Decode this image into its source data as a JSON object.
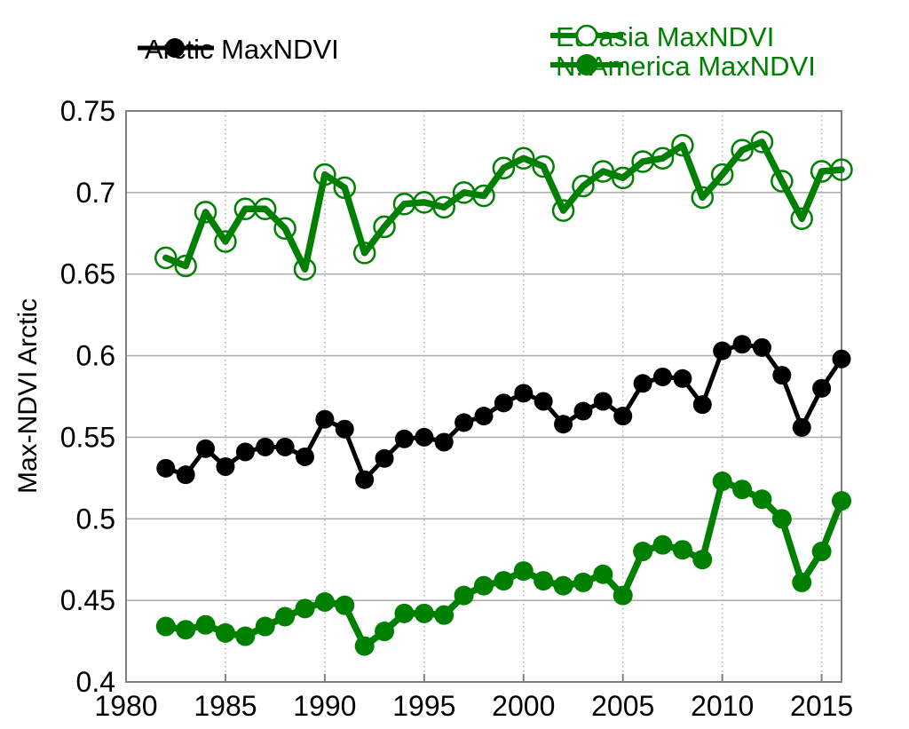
{
  "axes": {
    "y_title": "Max-NDVI Arctic"
  },
  "legend": {
    "arctic_label": "Arctic MaxNDVI",
    "eurasia_label": "Eurasia MaxNDVI",
    "namerica_label": "N. America MaxNDVI"
  },
  "colors": {
    "black": "#000000",
    "green": "#008000",
    "grid": "#b0b0b0",
    "frame": "#808080"
  },
  "chart_data": {
    "type": "line",
    "title": "",
    "xlabel": "",
    "ylabel": "Max-NDVI Arctic",
    "xlim": [
      1980,
      2016
    ],
    "ylim": [
      0.4,
      0.75
    ],
    "x_ticks": [
      1980,
      1985,
      1990,
      1995,
      2000,
      2005,
      2010,
      2015
    ],
    "y_ticks": [
      0.4,
      0.45,
      0.5,
      0.55,
      0.6,
      0.65,
      0.7,
      0.75
    ],
    "y_tick_labels": [
      "0.4",
      "0.45",
      "0.5",
      "0.55",
      "0.6",
      "0.65",
      "0.7",
      "0.75"
    ],
    "grid": "horizontal-solid-gray, vertical-dotted-gray-at-5yr",
    "legend_position": "top",
    "x": [
      1982,
      1983,
      1984,
      1985,
      1986,
      1987,
      1988,
      1989,
      1990,
      1991,
      1992,
      1993,
      1994,
      1995,
      1996,
      1997,
      1998,
      1999,
      2000,
      2001,
      2002,
      2003,
      2004,
      2005,
      2006,
      2007,
      2008,
      2009,
      2010,
      2011,
      2012,
      2013,
      2014,
      2015,
      2016
    ],
    "series": [
      {
        "name": "Eurasia MaxNDVI",
        "color": "#008000",
        "marker": "open-circle",
        "values": [
          0.66,
          0.655,
          0.688,
          0.67,
          0.69,
          0.69,
          0.678,
          0.653,
          0.711,
          0.703,
          0.663,
          0.679,
          0.693,
          0.694,
          0.691,
          0.7,
          0.698,
          0.715,
          0.721,
          0.716,
          0.689,
          0.704,
          0.713,
          0.709,
          0.719,
          0.721,
          0.729,
          0.697,
          0.711,
          0.726,
          0.731,
          0.707,
          0.684,
          0.713,
          0.714
        ]
      },
      {
        "name": "N. America MaxNDVI",
        "color": "#008000",
        "marker": "filled-circle",
        "values": [
          0.434,
          0.432,
          0.435,
          0.43,
          0.428,
          0.434,
          0.44,
          0.445,
          0.449,
          0.447,
          0.422,
          0.431,
          0.442,
          0.442,
          0.441,
          0.453,
          0.459,
          0.462,
          0.468,
          0.462,
          0.459,
          0.461,
          0.466,
          0.453,
          0.48,
          0.484,
          0.481,
          0.475,
          0.523,
          0.518,
          0.512,
          0.5,
          0.461,
          0.48,
          0.511
        ]
      },
      {
        "name": "Arctic MaxNDVI",
        "color": "#000000",
        "marker": "filled-circle",
        "values": [
          0.531,
          0.527,
          0.543,
          0.532,
          0.541,
          0.544,
          0.544,
          0.538,
          0.561,
          0.555,
          0.524,
          0.537,
          0.549,
          0.55,
          0.547,
          0.559,
          0.563,
          0.571,
          0.577,
          0.572,
          0.558,
          0.566,
          0.572,
          0.563,
          0.583,
          0.587,
          0.586,
          0.57,
          0.603,
          0.607,
          0.605,
          0.588,
          0.556,
          0.58,
          0.598
        ]
      }
    ]
  }
}
